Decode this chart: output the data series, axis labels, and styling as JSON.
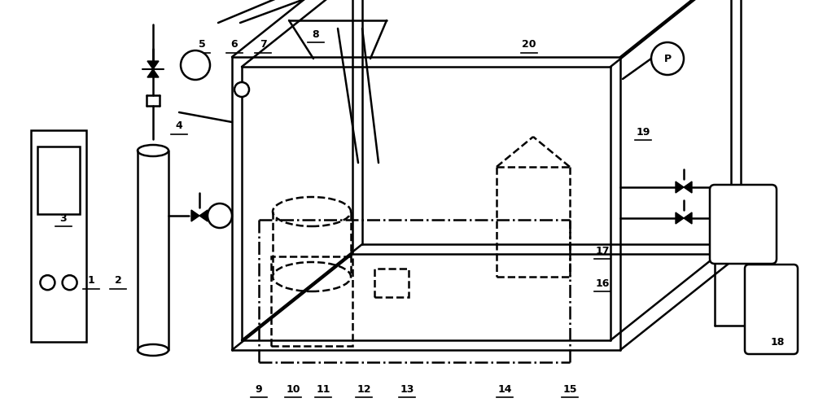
{
  "bg_color": "#ffffff",
  "line_color": "#000000",
  "lw": 1.8,
  "figsize": [
    10.0,
    5.16
  ],
  "dpi": 100
}
